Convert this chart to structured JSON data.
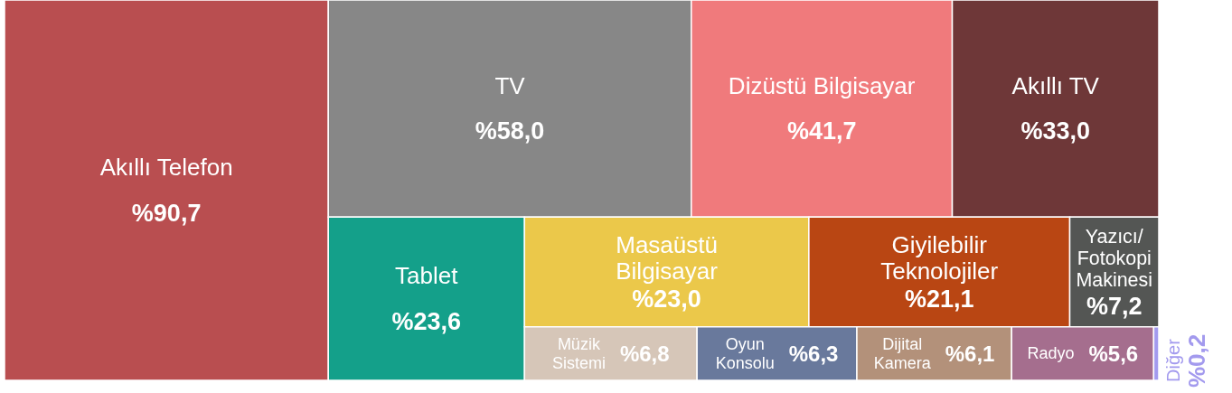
{
  "chart_data": {
    "type": "other",
    "categories": [
      "Akıllı Telefon",
      "TV",
      "Dizüstü Bilgisayar",
      "Akıllı TV",
      "Tablet",
      "Masaüstü Bilgisayar",
      "Giyilebilir Teknolojiler",
      "Yazıcı/Fotokopi Makinesi",
      "Müzik Sistemi",
      "Oyun Konsolu",
      "Dijital Kamera",
      "Radyo",
      "Diğer"
    ],
    "values": [
      90.7,
      58.0,
      41.7,
      33.0,
      23.6,
      23.0,
      21.1,
      7.2,
      6.8,
      6.3,
      6.1,
      5.6,
      0.2
    ],
    "value_labels": [
      "%90,7",
      "%58,0",
      "%41,7",
      "%33,0",
      "%23,6",
      "%23,0",
      "%21,1",
      "%7,2",
      "%6,8",
      "%6,3",
      "%6,1",
      "%5,6",
      "%0,2"
    ],
    "colors": [
      "#b94e50",
      "#878787",
      "#f07a7c",
      "#6e3738",
      "#14a08a",
      "#ebc84a",
      "#b94613",
      "#545654",
      "#d6c6b8",
      "#69799c",
      "#b3917a",
      "#a56e8e",
      "#a39aee"
    ]
  }
}
